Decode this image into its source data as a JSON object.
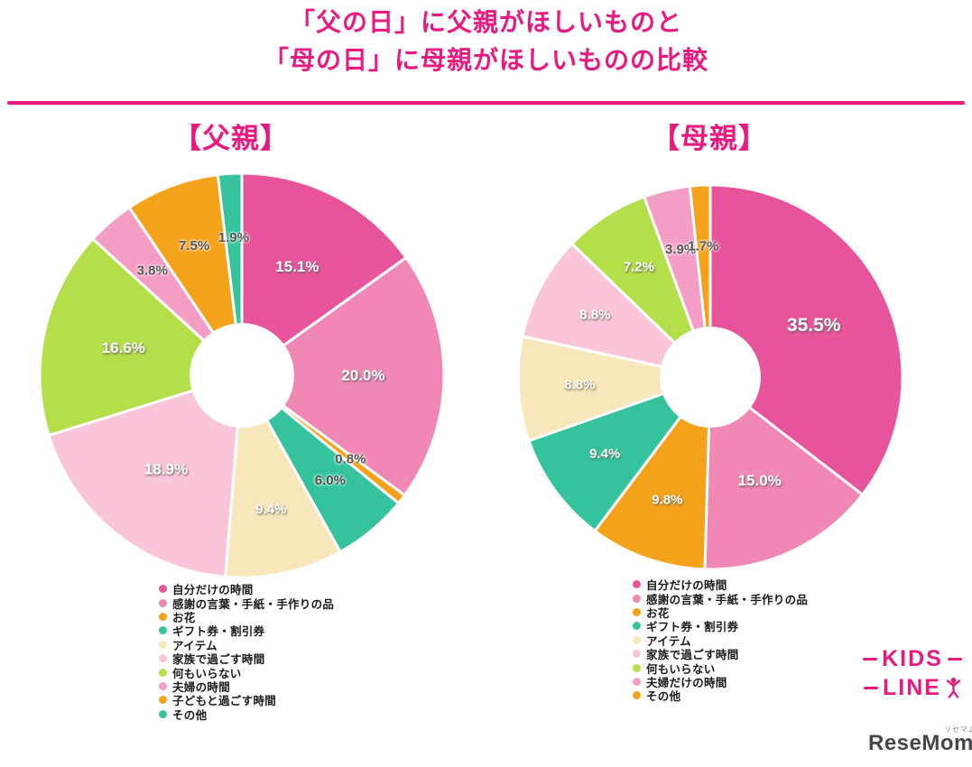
{
  "title": {
    "line1": "「父の日」に父親がほしいものと",
    "line2": "「母の日」に母親がほしいものの比較"
  },
  "accent_color": "#e8197f",
  "chart_data": [
    {
      "type": "pie",
      "title": "【父親】",
      "donut": true,
      "donut_hole_ratio": 0.26,
      "start_angle_deg": -90,
      "legend_position": "bottom",
      "categories": [
        "自分だけの時間",
        "感謝の言葉・手紙・手作りの品",
        "お花",
        "ギフト券・割引券",
        "アイテム",
        "家族で過ごす時間",
        "何もいらない",
        "夫婦の時間",
        "子どもと過ごす時間",
        "その他"
      ],
      "values": [
        15.1,
        20.0,
        0.8,
        6.0,
        9.4,
        18.9,
        16.6,
        3.8,
        7.5,
        1.9
      ],
      "labels": [
        "15.1%",
        "20.0%",
        "0.8%",
        "6.0%",
        "9.4%",
        "18.9%",
        "16.6%",
        "3.8%",
        "7.5%",
        "1.9%"
      ],
      "colors": [
        "#e8549b",
        "#f087b5",
        "#f5a21b",
        "#34c39c",
        "#f8e7ba",
        "#fac4d9",
        "#b4de4a",
        "#f49ec6",
        "#f5a21b",
        "#34c39c"
      ],
      "label_colors": [
        "#ffffff",
        "#ffffff",
        "#595959",
        "#4d4d4d",
        "#ffffff",
        "#ffffff",
        "#ffffff",
        "#595959",
        "#595959",
        "#595959"
      ]
    },
    {
      "type": "pie",
      "title": "【母親】",
      "donut": true,
      "donut_hole_ratio": 0.26,
      "start_angle_deg": -90,
      "legend_position": "bottom",
      "categories": [
        "自分だけの時間",
        "感謝の言葉・手紙・手作りの品",
        "お花",
        "ギフト券・割引券",
        "アイテム",
        "家族で過ごす時間",
        "何もいらない",
        "夫婦だけの時間",
        "その他"
      ],
      "values": [
        35.5,
        15.0,
        9.8,
        9.4,
        8.8,
        8.8,
        7.2,
        3.9,
        1.7
      ],
      "labels": [
        "35.5%",
        "15.0%",
        "9.8%",
        "9.4%",
        "8.8%",
        "8.8%",
        "7.2%",
        "3.9%",
        "1.7%"
      ],
      "colors": [
        "#e8549b",
        "#f087b5",
        "#f5a21b",
        "#34c39c",
        "#f8e7ba",
        "#fac4d9",
        "#b4de4a",
        "#f49ec6",
        "#f5a21b"
      ],
      "label_colors": [
        "#ffffff",
        "#ffffff",
        "#ffffff",
        "#ffffff",
        "#ffffff",
        "#ffffff",
        "#ffffff",
        "#595959",
        "#595959"
      ]
    }
  ],
  "logos": {
    "kidsline_line1": "KIDS",
    "kidsline_line2": "LINE",
    "resemom_text": "ReseMom.",
    "resemom_ruby": "リセマム"
  }
}
